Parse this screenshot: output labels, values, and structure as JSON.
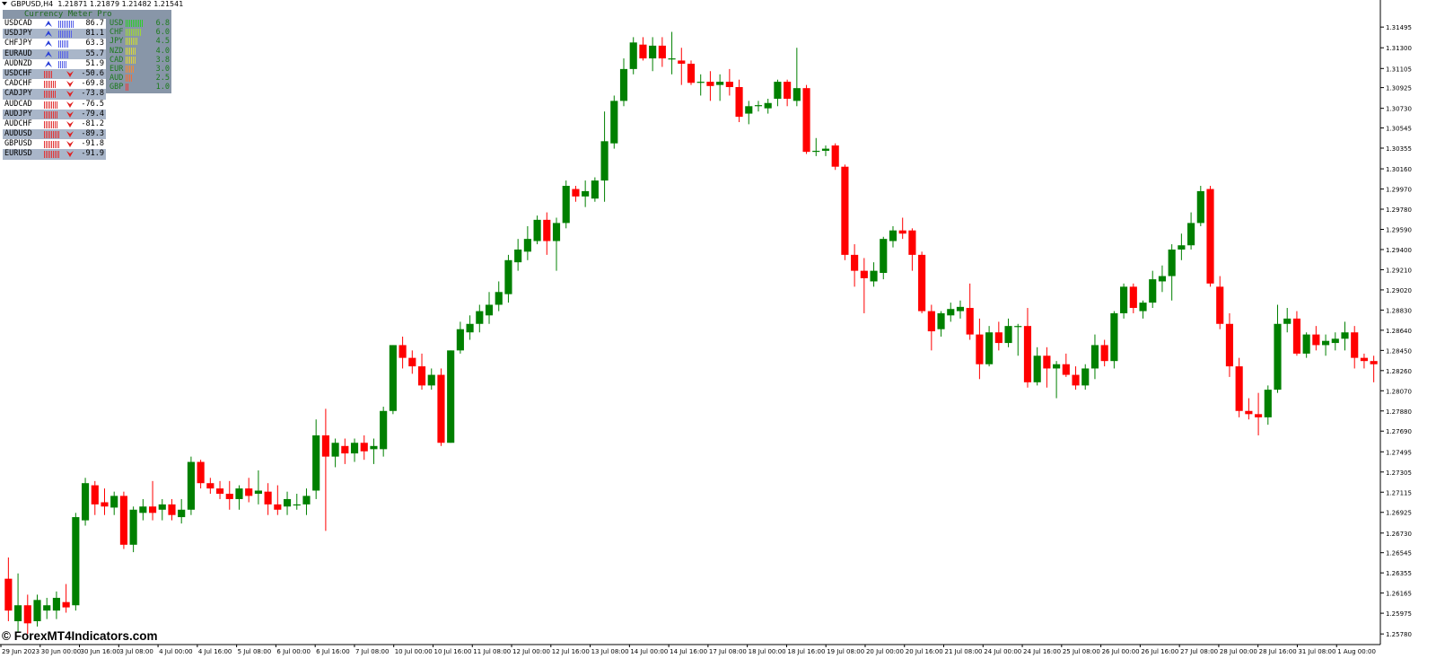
{
  "header": {
    "symbol": "GBPUSD,H4",
    "quotes": "1.21871 1.21879 1.21482 1.21541"
  },
  "indicator": {
    "title": "Currency Meter Pro",
    "pairs": [
      {
        "pair": "USDCAD",
        "value": "86.7",
        "dir": "up",
        "bars": 9
      },
      {
        "pair": "USDJPY",
        "value": "81.1",
        "dir": "up",
        "bars": 8
      },
      {
        "pair": "CHFJPY",
        "value": "63.3",
        "dir": "up",
        "bars": 6
      },
      {
        "pair": "EURAUD",
        "value": "55.7",
        "dir": "up",
        "bars": 6
      },
      {
        "pair": "AUDNZD",
        "value": "51.9",
        "dir": "up",
        "bars": 5
      },
      {
        "pair": "USDCHF",
        "value": "-50.6",
        "dir": "down",
        "bars": 5
      },
      {
        "pair": "CADCHF",
        "value": "-69.8",
        "dir": "down",
        "bars": 7
      },
      {
        "pair": "CADJPY",
        "value": "-73.8",
        "dir": "down",
        "bars": 7
      },
      {
        "pair": "AUDCAD",
        "value": "-76.5",
        "dir": "down",
        "bars": 8
      },
      {
        "pair": "AUDJPY",
        "value": "-79.4",
        "dir": "down",
        "bars": 8
      },
      {
        "pair": "AUDCHF",
        "value": "-81.2",
        "dir": "down",
        "bars": 8
      },
      {
        "pair": "AUDUSD",
        "value": "-89.3",
        "dir": "down",
        "bars": 9
      },
      {
        "pair": "GBPUSD",
        "value": "-91.8",
        "dir": "down",
        "bars": 9
      },
      {
        "pair": "EURUSD",
        "value": "-91.9",
        "dir": "down",
        "bars": 9
      }
    ],
    "currencies": [
      {
        "name": "USD",
        "value": "6.8",
        "color": "#2ecc2e",
        "bars": 10
      },
      {
        "name": "CHF",
        "value": "6.0",
        "color": "#9ed63a",
        "bars": 9
      },
      {
        "name": "JPY",
        "value": "4.5",
        "color": "#c9d93a",
        "bars": 7
      },
      {
        "name": "NZD",
        "value": "4.0",
        "color": "#d9d93a",
        "bars": 6
      },
      {
        "name": "CAD",
        "value": "3.8",
        "color": "#e0d23a",
        "bars": 6
      },
      {
        "name": "EUR",
        "value": "3.0",
        "color": "#f08a3a",
        "bars": 5
      },
      {
        "name": "AUD",
        "value": "2.5",
        "color": "#f0703a",
        "bars": 4
      },
      {
        "name": "GBP",
        "value": "1.0",
        "color": "#ee3a3a",
        "bars": 2
      }
    ]
  },
  "watermark": "© ForexMT4Indicators.com",
  "colors": {
    "bull": "#008000",
    "bear": "#ff0000",
    "up_bars": "#5560e8",
    "down_bars": "#e23333"
  },
  "chart_data": {
    "type": "candlestick",
    "symbol": "GBPUSD",
    "timeframe": "H4",
    "ylim": [
      1.2568,
      1.3175
    ],
    "y_ticks": [
      "1.31495",
      "1.31300",
      "1.31105",
      "1.30925",
      "1.30730",
      "1.30545",
      "1.30355",
      "1.30160",
      "1.29970",
      "1.29780",
      "1.29590",
      "1.29400",
      "1.29210",
      "1.29020",
      "1.28830",
      "1.28640",
      "1.28450",
      "1.28260",
      "1.28070",
      "1.27880",
      "1.27690",
      "1.27495",
      "1.27305",
      "1.27115",
      "1.26925",
      "1.26730",
      "1.26545",
      "1.26355",
      "1.26165",
      "1.25975",
      "1.25780"
    ],
    "x_labels": [
      "29 Jun 2023",
      "30 Jun 00:00",
      "30 Jun 16:00",
      "3 Jul 08:00",
      "4 Jul 00:00",
      "4 Jul 16:00",
      "5 Jul 08:00",
      "6 Jul 00:00",
      "6 Jul 16:00",
      "7 Jul 08:00",
      "10 Jul 00:00",
      "10 Jul 16:00",
      "11 Jul 08:00",
      "12 Jul 00:00",
      "12 Jul 16:00",
      "13 Jul 08:00",
      "14 Jul 00:00",
      "14 Jul 16:00",
      "17 Jul 08:00",
      "18 Jul 00:00",
      "18 Jul 16:00",
      "19 Jul 08:00",
      "20 Jul 00:00",
      "20 Jul 16:00",
      "21 Jul 08:00",
      "24 Jul 00:00",
      "24 Jul 16:00",
      "25 Jul 08:00",
      "26 Jul 00:00",
      "26 Jul 16:00",
      "27 Jul 08:00",
      "28 Jul 00:00",
      "28 Jul 16:00",
      "31 Jul 08:00",
      "1 Aug 00:00"
    ],
    "candles": [
      [
        1.263,
        1.265,
        1.259,
        1.26
      ],
      [
        1.259,
        1.2635,
        1.258,
        1.2605
      ],
      [
        1.2605,
        1.2615,
        1.2578,
        1.2588
      ],
      [
        1.259,
        1.2615,
        1.2585,
        1.261
      ],
      [
        1.26,
        1.2612,
        1.2592,
        1.2605
      ],
      [
        1.26,
        1.2618,
        1.2592,
        1.2612
      ],
      [
        1.2608,
        1.2625,
        1.2598,
        1.2603
      ],
      [
        1.2605,
        1.2692,
        1.26,
        1.2688
      ],
      [
        1.2685,
        1.2725,
        1.268,
        1.272
      ],
      [
        1.2718,
        1.2722,
        1.269,
        1.27
      ],
      [
        1.2702,
        1.2715,
        1.269,
        1.2698
      ],
      [
        1.2697,
        1.2712,
        1.269,
        1.2708
      ],
      [
        1.2708,
        1.2712,
        1.2658,
        1.2662
      ],
      [
        1.2662,
        1.2698,
        1.2655,
        1.2695
      ],
      [
        1.2692,
        1.2705,
        1.2685,
        1.2698
      ],
      [
        1.2698,
        1.2722,
        1.2685,
        1.2692
      ],
      [
        1.2695,
        1.2705,
        1.2685,
        1.27
      ],
      [
        1.27,
        1.2705,
        1.2685,
        1.269
      ],
      [
        1.2688,
        1.2705,
        1.2682,
        1.2695
      ],
      [
        1.2695,
        1.2745,
        1.269,
        1.274
      ],
      [
        1.274,
        1.2742,
        1.2715,
        1.272
      ],
      [
        1.272,
        1.2725,
        1.271,
        1.2715
      ],
      [
        1.2715,
        1.2722,
        1.2705,
        1.271
      ],
      [
        1.271,
        1.2722,
        1.2695,
        1.2705
      ],
      [
        1.2705,
        1.2718,
        1.2695,
        1.2715
      ],
      [
        1.2715,
        1.2725,
        1.2702,
        1.2708
      ],
      [
        1.271,
        1.2732,
        1.27,
        1.2713
      ],
      [
        1.2712,
        1.272,
        1.269,
        1.27
      ],
      [
        1.27,
        1.2718,
        1.269,
        1.2695
      ],
      [
        1.2698,
        1.2712,
        1.269,
        1.2705
      ],
      [
        1.27,
        1.271,
        1.2695,
        1.27
      ],
      [
        1.27,
        1.2715,
        1.269,
        1.2708
      ],
      [
        1.2713,
        1.278,
        1.2705,
        1.2765
      ],
      [
        1.2765,
        1.279,
        1.2675,
        1.2745
      ],
      [
        1.2745,
        1.2762,
        1.2735,
        1.2758
      ],
      [
        1.2755,
        1.2762,
        1.2738,
        1.2748
      ],
      [
        1.2748,
        1.2762,
        1.274,
        1.2758
      ],
      [
        1.2758,
        1.2765,
        1.2742,
        1.275
      ],
      [
        1.2752,
        1.2762,
        1.2738,
        1.2755
      ],
      [
        1.2752,
        1.2792,
        1.2745,
        1.2788
      ],
      [
        1.2788,
        1.285,
        1.2785,
        1.285
      ],
      [
        1.285,
        1.2858,
        1.2828,
        1.2838
      ],
      [
        1.2838,
        1.2845,
        1.2823,
        1.283
      ],
      [
        1.283,
        1.2842,
        1.2808,
        1.2812
      ],
      [
        1.2812,
        1.2828,
        1.2808,
        1.2822
      ],
      [
        1.2822,
        1.2828,
        1.2755,
        1.2758
      ],
      [
        1.2758,
        1.2845,
        1.2758,
        1.2845
      ],
      [
        1.2845,
        1.2872,
        1.2842,
        1.2865
      ],
      [
        1.2862,
        1.2878,
        1.2855,
        1.287
      ],
      [
        1.287,
        1.2888,
        1.2862,
        1.2882
      ],
      [
        1.2878,
        1.29,
        1.287,
        1.2888
      ],
      [
        1.2888,
        1.291,
        1.2882,
        1.29
      ],
      [
        1.2898,
        1.2935,
        1.289,
        1.293
      ],
      [
        1.2928,
        1.295,
        1.292,
        1.294
      ],
      [
        1.2938,
        1.2962,
        1.293,
        1.295
      ],
      [
        1.2948,
        1.2972,
        1.2945,
        1.2968
      ],
      [
        1.2968,
        1.2975,
        1.2935,
        1.2948
      ],
      [
        1.2948,
        1.297,
        1.292,
        1.2965
      ],
      [
        1.2965,
        1.3005,
        1.296,
        1.3
      ],
      [
        1.2997,
        1.3,
        1.2985,
        1.299
      ],
      [
        1.299,
        1.3005,
        1.298,
        1.2995
      ],
      [
        1.2988,
        1.3008,
        1.2985,
        1.3005
      ],
      [
        1.3005,
        1.307,
        1.2985,
        1.3042
      ],
      [
        1.304,
        1.3085,
        1.3035,
        1.308
      ],
      [
        1.308,
        1.312,
        1.3075,
        1.311
      ],
      [
        1.311,
        1.314,
        1.3105,
        1.3135
      ],
      [
        1.3133,
        1.314,
        1.3118,
        1.312
      ],
      [
        1.312,
        1.314,
        1.3108,
        1.3132
      ],
      [
        1.3132,
        1.314,
        1.3112,
        1.312
      ],
      [
        1.312,
        1.3145,
        1.3105,
        1.312
      ],
      [
        1.3118,
        1.313,
        1.3095,
        1.3115
      ],
      [
        1.3115,
        1.3118,
        1.3095,
        1.3097
      ],
      [
        1.3098,
        1.3105,
        1.3085,
        1.3098
      ],
      [
        1.3098,
        1.3108,
        1.308,
        1.3094
      ],
      [
        1.3095,
        1.3105,
        1.308,
        1.3098
      ],
      [
        1.3098,
        1.311,
        1.3085,
        1.3093
      ],
      [
        1.3093,
        1.31,
        1.306,
        1.3065
      ],
      [
        1.3068,
        1.308,
        1.3058,
        1.3075
      ],
      [
        1.3075,
        1.308,
        1.307,
        1.3076
      ],
      [
        1.3073,
        1.3082,
        1.3068,
        1.3078
      ],
      [
        1.3082,
        1.31,
        1.3075,
        1.3098
      ],
      [
        1.3098,
        1.31,
        1.3075,
        1.3082
      ],
      [
        1.308,
        1.313,
        1.3075,
        1.3092
      ],
      [
        1.3092,
        1.3095,
        1.303,
        1.3032
      ],
      [
        1.3032,
        1.3045,
        1.3028,
        1.3033
      ],
      [
        1.3033,
        1.3038,
        1.3028,
        1.3035
      ],
      [
        1.3038,
        1.304,
        1.3015,
        1.3018
      ],
      [
        1.3018,
        1.302,
        1.293,
        1.2935
      ],
      [
        1.2935,
        1.2945,
        1.2905,
        1.292
      ],
      [
        1.292,
        1.2932,
        1.288,
        1.2913
      ],
      [
        1.291,
        1.2928,
        1.2905,
        1.292
      ],
      [
        1.2918,
        1.2952,
        1.2912,
        1.295
      ],
      [
        1.2948,
        1.2962,
        1.2942,
        1.2958
      ],
      [
        1.2958,
        1.297,
        1.295,
        1.2955
      ],
      [
        1.2958,
        1.296,
        1.292,
        1.2935
      ],
      [
        1.2935,
        1.2938,
        1.288,
        1.2882
      ],
      [
        1.2882,
        1.2888,
        1.2845,
        1.2863
      ],
      [
        1.2865,
        1.2882,
        1.2858,
        1.288
      ],
      [
        1.2878,
        1.289,
        1.2872,
        1.2884
      ],
      [
        1.2882,
        1.2892,
        1.2875,
        1.2886
      ],
      [
        1.2885,
        1.2908,
        1.2855,
        1.286
      ],
      [
        1.286,
        1.2875,
        1.2818,
        1.2832
      ],
      [
        1.2832,
        1.2868,
        1.283,
        1.2862
      ],
      [
        1.2862,
        1.2872,
        1.2845,
        1.2852
      ],
      [
        1.2852,
        1.2875,
        1.2848,
        1.2868
      ],
      [
        1.2868,
        1.287,
        1.284,
        1.2868
      ],
      [
        1.2868,
        1.2885,
        1.281,
        1.2815
      ],
      [
        1.2815,
        1.2848,
        1.2812,
        1.284
      ],
      [
        1.284,
        1.2848,
        1.281,
        1.2828
      ],
      [
        1.2828,
        1.2835,
        1.28,
        1.2832
      ],
      [
        1.2832,
        1.2842,
        1.282,
        1.2822
      ],
      [
        1.2822,
        1.283,
        1.2808,
        1.2812
      ],
      [
        1.2812,
        1.2832,
        1.2808,
        1.2828
      ],
      [
        1.2828,
        1.286,
        1.2818,
        1.285
      ],
      [
        1.285,
        1.2855,
        1.283,
        1.2835
      ],
      [
        1.2835,
        1.2882,
        1.2828,
        1.288
      ],
      [
        1.288,
        1.2908,
        1.2875,
        1.2905
      ],
      [
        1.2905,
        1.2908,
        1.288,
        1.2885
      ],
      [
        1.2882,
        1.2892,
        1.2875,
        1.289
      ],
      [
        1.289,
        1.292,
        1.2885,
        1.2912
      ],
      [
        1.291,
        1.2925,
        1.29,
        1.2915
      ],
      [
        1.2915,
        1.2945,
        1.2892,
        1.294
      ],
      [
        1.294,
        1.2955,
        1.293,
        1.2944
      ],
      [
        1.2944,
        1.2975,
        1.294,
        1.2965
      ],
      [
        1.2965,
        1.3,
        1.2962,
        1.2995
      ],
      [
        1.2997,
        1.3,
        1.2905,
        1.2908
      ],
      [
        1.2905,
        1.2915,
        1.2865,
        1.287
      ],
      [
        1.287,
        1.288,
        1.282,
        1.283
      ],
      [
        1.283,
        1.2838,
        1.2782,
        1.2788
      ],
      [
        1.2788,
        1.28,
        1.278,
        1.2785
      ],
      [
        1.2785,
        1.2805,
        1.2765,
        1.2782
      ],
      [
        1.2782,
        1.2812,
        1.2775,
        1.2808
      ],
      [
        1.2808,
        1.2888,
        1.2805,
        1.287
      ],
      [
        1.287,
        1.2885,
        1.2862,
        1.2875
      ],
      [
        1.2875,
        1.2882,
        1.284,
        1.2842
      ],
      [
        1.2842,
        1.2862,
        1.2838,
        1.286
      ],
      [
        1.286,
        1.2868,
        1.2845,
        1.285
      ],
      [
        1.285,
        1.286,
        1.284,
        1.2854
      ],
      [
        1.2852,
        1.2862,
        1.2845,
        1.2856
      ],
      [
        1.2856,
        1.2872,
        1.2845,
        1.2862
      ],
      [
        1.2862,
        1.2868,
        1.2828,
        1.2838
      ],
      [
        1.2838,
        1.2842,
        1.2828,
        1.2835
      ],
      [
        1.2835,
        1.284,
        1.2815,
        1.2832
      ]
    ]
  }
}
